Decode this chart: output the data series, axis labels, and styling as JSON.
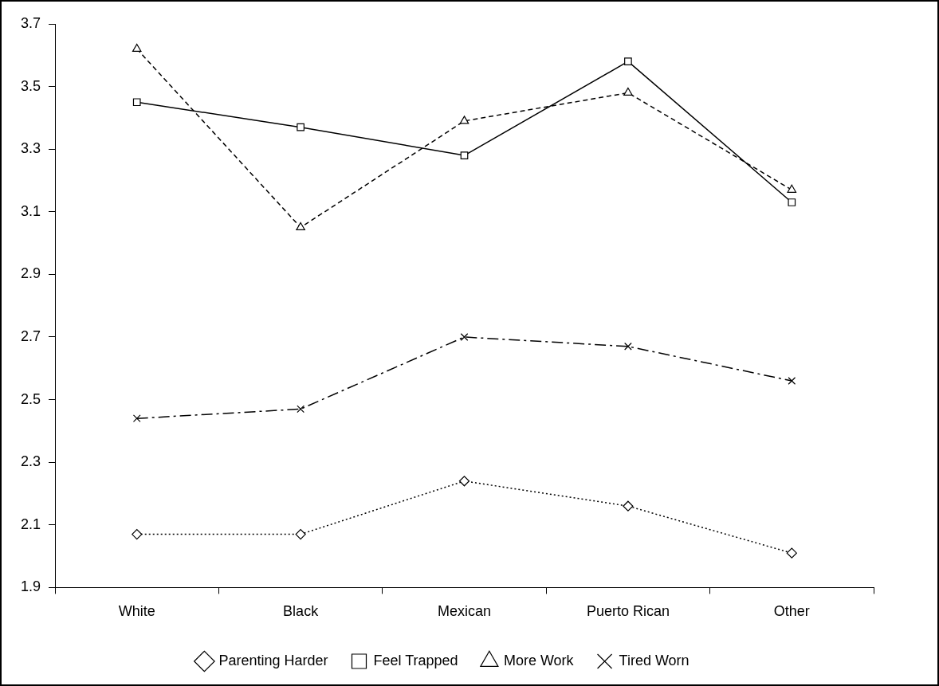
{
  "chart_data": {
    "type": "line",
    "categories": [
      "White",
      "Black",
      "Mexican",
      "Puerto Rican",
      "Other"
    ],
    "series": [
      {
        "name": "Parenting Harder",
        "color": "#000000",
        "marker": "diamond",
        "line_style": "dotted",
        "values": [
          2.07,
          2.07,
          2.24,
          2.16,
          2.01
        ]
      },
      {
        "name": "Feel Trapped",
        "color": "#000000",
        "marker": "square",
        "line_style": "solid",
        "values": [
          3.45,
          3.37,
          3.28,
          3.58,
          3.13
        ]
      },
      {
        "name": "More Work",
        "color": "#000000",
        "marker": "triangle",
        "line_style": "dashed",
        "values": [
          3.62,
          3.05,
          3.39,
          3.48,
          3.17
        ]
      },
      {
        "name": "Tired Worn",
        "color": "#000000",
        "marker": "cross",
        "line_style": "dashdot",
        "values": [
          2.44,
          2.47,
          2.7,
          2.67,
          2.56
        ]
      }
    ],
    "ylim": [
      1.9,
      3.7
    ],
    "yticks": [
      1.9,
      2.1,
      2.3,
      2.5,
      2.7,
      2.9,
      3.1,
      3.3,
      3.5,
      3.7
    ],
    "grid": false,
    "legend": "bottom"
  }
}
